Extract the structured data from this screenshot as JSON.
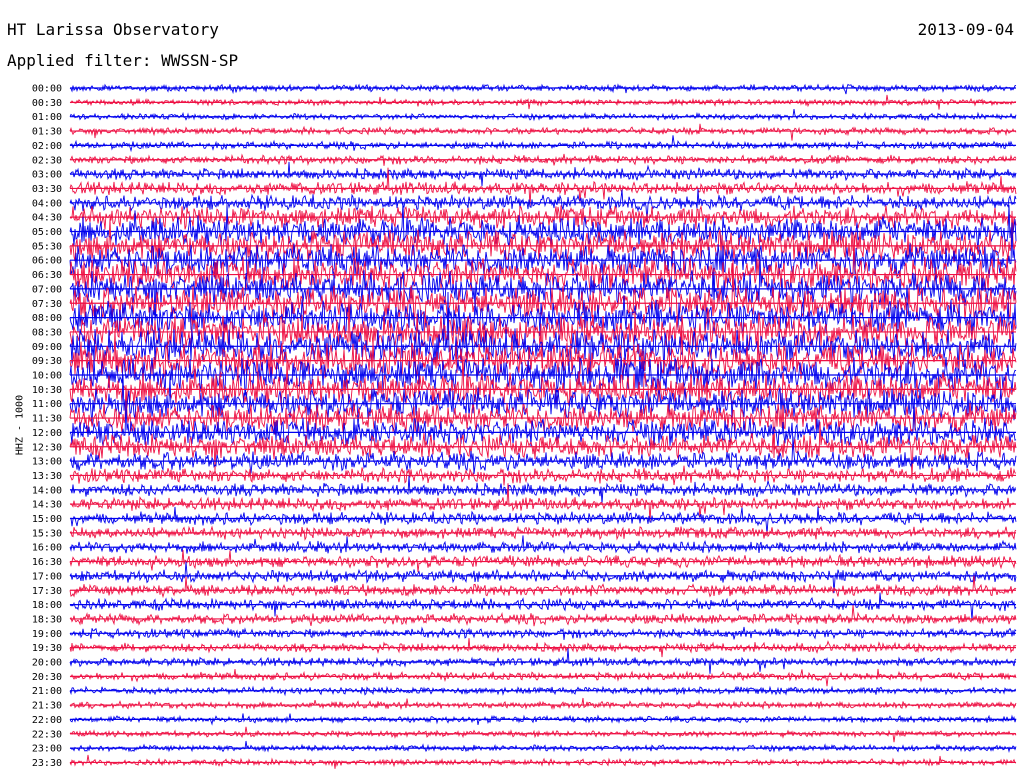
{
  "header": {
    "station": "HT Larissa Observatory",
    "date": "2013-09-04",
    "filter": "Applied filter: WWSSN-SP",
    "channel_label": "HHZ - 1000"
  },
  "colors": {
    "even_trace": "#0000ee",
    "odd_trace": "#ee1144",
    "background": "#ffffff"
  },
  "chart_data": {
    "type": "line",
    "title": "HT Larissa Observatory",
    "subtitle": "Applied filter: WWSSN-SP",
    "ylabel": "HHZ - 1000",
    "xlabel": "",
    "grid": false,
    "date": "2013-09-04",
    "row_labels": [
      "00:00",
      "00:30",
      "01:00",
      "01:30",
      "02:00",
      "02:30",
      "03:00",
      "03:30",
      "04:00",
      "04:30",
      "05:00",
      "05:30",
      "06:00",
      "06:30",
      "07:00",
      "07:30",
      "08:00",
      "08:30",
      "09:00",
      "09:30",
      "10:00",
      "10:30",
      "11:00",
      "11:30",
      "12:00",
      "12:30",
      "13:00",
      "13:30",
      "14:00",
      "14:30",
      "15:00",
      "15:30",
      "16:00",
      "16:30",
      "17:00",
      "17:30",
      "18:00",
      "18:30",
      "19:00",
      "19:30",
      "20:00",
      "20:30",
      "21:00",
      "21:30",
      "22:00",
      "22:30",
      "23:00",
      "23:30"
    ],
    "relative_amplitude": [
      0.12,
      0.1,
      0.1,
      0.12,
      0.14,
      0.18,
      0.25,
      0.3,
      0.35,
      0.55,
      0.75,
      0.8,
      0.85,
      0.85,
      0.85,
      0.85,
      0.9,
      0.9,
      0.9,
      0.9,
      0.9,
      0.85,
      0.8,
      0.75,
      0.7,
      0.6,
      0.45,
      0.35,
      0.3,
      0.3,
      0.28,
      0.26,
      0.25,
      0.28,
      0.28,
      0.26,
      0.25,
      0.22,
      0.2,
      0.18,
      0.17,
      0.15,
      0.13,
      0.12,
      0.11,
      0.1,
      0.1,
      0.1
    ],
    "series_colors": [
      "blue",
      "red"
    ]
  }
}
